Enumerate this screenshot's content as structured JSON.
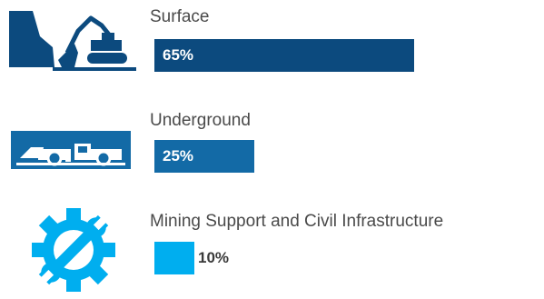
{
  "chart_data": {
    "type": "bar",
    "orientation": "horizontal",
    "categories": [
      "Surface",
      "Underground",
      "Mining Support and Civil Infrastructure"
    ],
    "values": [
      65,
      25,
      10
    ],
    "value_labels": [
      "65%",
      "25%",
      "10%"
    ],
    "unit": "%",
    "icons": [
      "open-pit-excavator-icon",
      "underground-loader-icon",
      "wrench-gear-icon"
    ],
    "colors": {
      "surface": "#0c4a7e",
      "underground": "#136aa6",
      "support": "#00aeef",
      "label_text": "#4a4a4a",
      "value_light": "#ffffff",
      "value_dark": "#3a3a3a"
    }
  }
}
